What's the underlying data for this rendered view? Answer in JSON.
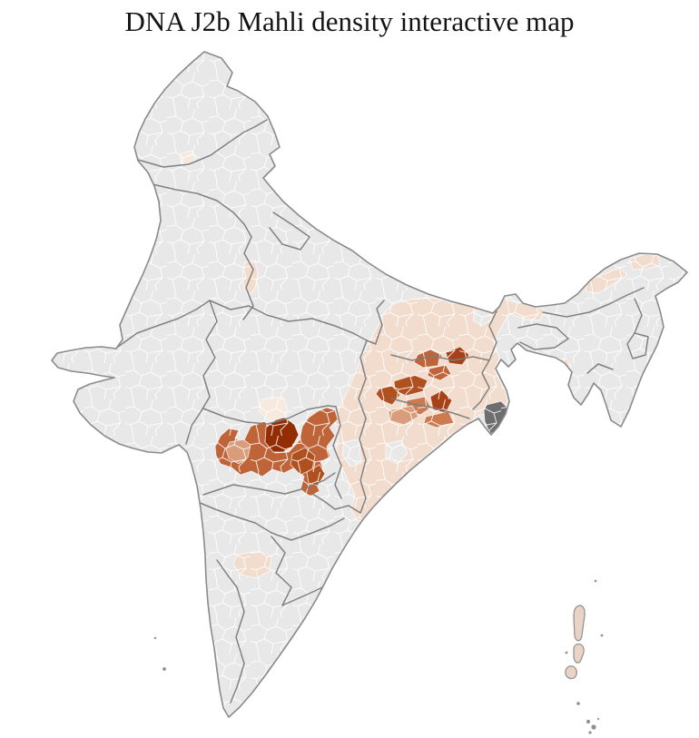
{
  "title": "DNA J2b Mahli density interactive map",
  "map": {
    "background": "#ffffff",
    "land_fill": "#e8e8e9",
    "district_border": "#ffffff",
    "state_border": "#7b7b7b",
    "coast_border": "#8a8a8a",
    "island_stroke": "#8f8f8f",
    "speck_fill": "#8f8f8f",
    "density_palette": {
      "level_0": "#e8e8e9",
      "level_1": "#f6e9de",
      "level_2": "#f2dccd",
      "level_3": "#e0b598",
      "level_4": "#d99d7c",
      "level_5": "#cc7b50",
      "level_6": "#bf6438",
      "level_7": "#b0501f",
      "level_8": "#a84018",
      "level_9": "#932e04",
      "no_data": "#6e6e6e",
      "island": "#e9d3c4"
    },
    "regions": [
      {
        "id": "east-india-belt",
        "level": "level_2"
      },
      {
        "id": "duars-patch",
        "level": "level_2"
      },
      {
        "id": "assam-valley-upper",
        "level": "level_2"
      },
      {
        "id": "assam-valley-mid",
        "level": "level_2"
      },
      {
        "id": "tripura-district",
        "level": "level_2"
      },
      {
        "id": "jammu-district",
        "level": "level_1"
      },
      {
        "id": "rajasthan-mp-district",
        "level": "level_2"
      },
      {
        "id": "telangana-district",
        "level": "level_2"
      },
      {
        "id": "bihar-gray-1",
        "level": "level_0"
      },
      {
        "id": "odisha-gray-1",
        "level": "level_0"
      },
      {
        "id": "odisha-gray-2",
        "level": "level_0"
      },
      {
        "id": "central-cluster-main",
        "level": "level_6"
      },
      {
        "id": "central-cluster-north-pale",
        "level": "level_1"
      },
      {
        "id": "central-cluster-west-light",
        "level": "level_4"
      },
      {
        "id": "central-cluster-southeast-dark",
        "level": "level_7"
      },
      {
        "id": "central-cluster-south-dark",
        "level": "level_7"
      },
      {
        "id": "central-cluster-core",
        "level": "level_9"
      },
      {
        "id": "jharkhand-nw",
        "level": "level_6"
      },
      {
        "id": "jharkhand-ne-dark",
        "level": "level_8"
      },
      {
        "id": "jharkhand-mid",
        "level": "level_6"
      },
      {
        "id": "jharkhand-west-band",
        "level": "level_7"
      },
      {
        "id": "jharkhand-far-west",
        "level": "level_7"
      },
      {
        "id": "singhbhum-dark",
        "level": "level_8"
      },
      {
        "id": "singhbhum-mid",
        "level": "level_5"
      },
      {
        "id": "odisha-north-light",
        "level": "level_4"
      },
      {
        "id": "odisha-north-mid",
        "level": "level_5"
      },
      {
        "id": "sundarbans-delta",
        "level": "no_data"
      },
      {
        "id": "andaman-islands",
        "level": "island"
      }
    ]
  }
}
